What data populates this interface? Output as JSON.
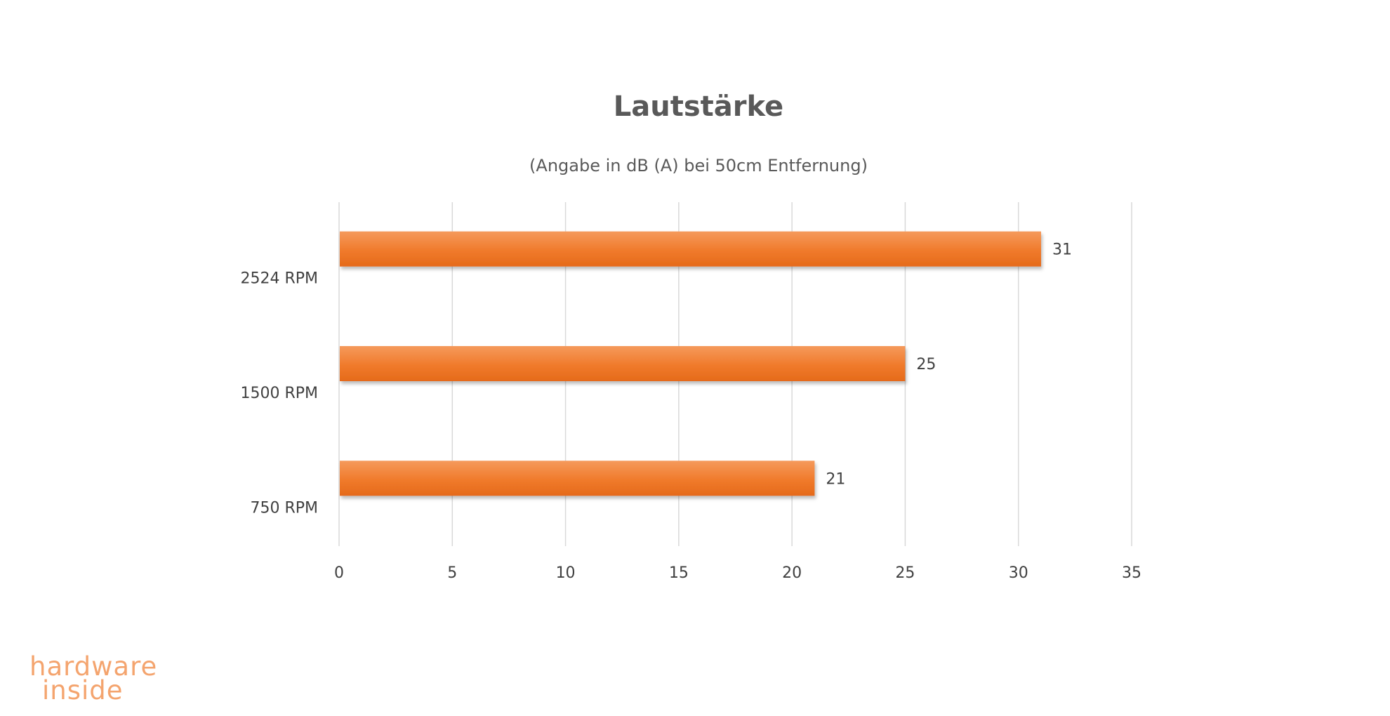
{
  "chart_data": {
    "type": "bar",
    "orientation": "horizontal",
    "title": "Lautstärke",
    "subtitle": "(Angabe in dB (A) bei 50cm Entfernung)",
    "categories": [
      "2524 RPM",
      "1500 RPM",
      "750 RPM"
    ],
    "values": [
      31,
      25,
      21
    ],
    "data_labels": [
      "31",
      "25",
      "21"
    ],
    "xlim": [
      0,
      35
    ],
    "x_ticks": [
      0,
      5,
      10,
      15,
      20,
      25,
      30,
      35
    ],
    "x_tick_labels": [
      "0",
      "5",
      "10",
      "15",
      "20",
      "25",
      "30",
      "35"
    ],
    "grid": true,
    "legend": "none",
    "bar_color": "#F07A2B"
  },
  "watermark": {
    "line1": "hardware",
    "line2": "inside",
    "color_primary": "#F4A46E",
    "color_secondary": "#A9B8CF"
  }
}
